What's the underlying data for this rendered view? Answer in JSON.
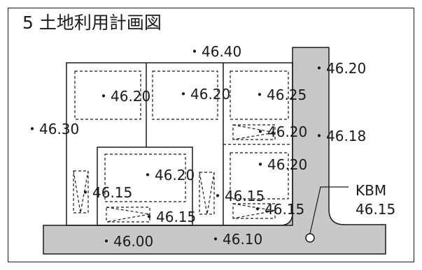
{
  "title": {
    "number": "5",
    "text": "土地利用計画図"
  },
  "elevations": {
    "top_center": "・46.40",
    "road_upper": "・46.20",
    "lot_a": "・46.20",
    "lot_b": "・46.20",
    "lot_c": "・46.25",
    "left_side": "・46.30",
    "lot_c_lower": "・46.20",
    "road_mid": "・46.18",
    "lot_d": "・46.20",
    "lot_e": "・46.20",
    "parking_left": "・46.15",
    "parking_mid": "・46.15",
    "parking_right": "・46.15",
    "parking_bottom": "・46.15",
    "road_bottom_left": "・46.00",
    "road_bottom_right": "・46.10"
  },
  "benchmark": {
    "label": "KBM",
    "value": "46.15"
  },
  "colors": {
    "road": "#c8c8c8",
    "line": "#1a1a1a"
  }
}
